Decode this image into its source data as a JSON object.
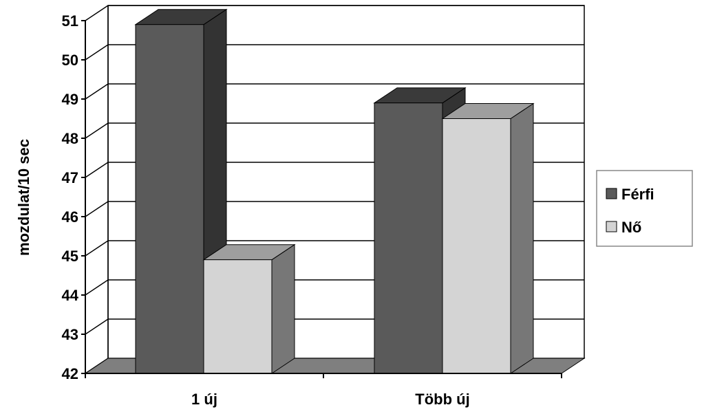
{
  "chart_data": {
    "type": "bar",
    "title": "",
    "xlabel": "",
    "ylabel": "mozdulat/10 sec",
    "ylim": [
      42,
      51
    ],
    "yticks": [
      42,
      43,
      44,
      45,
      46,
      47,
      48,
      49,
      50,
      51
    ],
    "categories": [
      "1 új",
      "Több új"
    ],
    "series": [
      {
        "name": "Férfi",
        "values": [
          50.9,
          48.9
        ],
        "color": "#5a5a5a"
      },
      {
        "name": "Nő",
        "values": [
          44.9,
          48.5
        ],
        "color": "#d4d4d4"
      }
    ],
    "grid": true,
    "legend": "right",
    "style": "3d-clustered-column"
  }
}
